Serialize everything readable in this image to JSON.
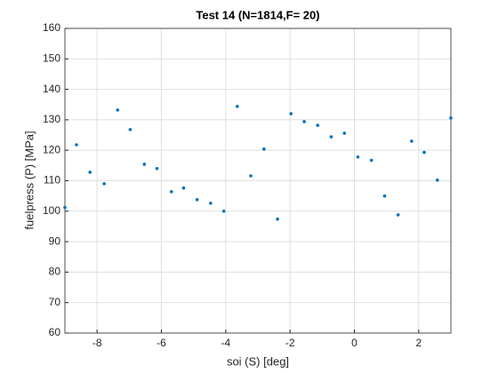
{
  "chart_data": {
    "type": "scatter",
    "title": "Test 14 (N=1814,F= 20)",
    "x_label": "soi (S) [deg]",
    "y_label": "fuelpress (P) [MPa]",
    "series": [
      {
        "color": "#0072bd",
        "x": [
          -9.0,
          -8.64,
          -8.22,
          -7.78,
          -7.36,
          -6.97,
          -6.53,
          -6.14,
          -5.69,
          -5.31,
          -4.89,
          -4.47,
          -4.06,
          -3.64,
          -3.22,
          -2.81,
          -2.39,
          -1.97,
          -1.56,
          -1.14,
          -0.72,
          -0.31,
          0.11,
          0.53,
          0.94,
          1.36,
          1.78,
          2.17,
          2.58,
          3.0
        ],
        "values": [
          101.2,
          121.8,
          112.8,
          109,
          133.2,
          126.8,
          115.4,
          114,
          106.4,
          107.6,
          103.8,
          102.6,
          100,
          134.4,
          111.6,
          120.4,
          97.4,
          132,
          129.4,
          128.2,
          124.4,
          125.6,
          117.8,
          116.7,
          105,
          98.8,
          123,
          119.3,
          110.2,
          130.6
        ]
      }
    ],
    "xlim": [
      -9,
      3
    ],
    "xticks": [
      -8,
      -6,
      -4,
      -2,
      0,
      2
    ],
    "ylim": [
      60,
      160
    ],
    "yticks": [
      60,
      70,
      80,
      90,
      100,
      110,
      120,
      130,
      140,
      150,
      160
    ],
    "grid": true
  }
}
